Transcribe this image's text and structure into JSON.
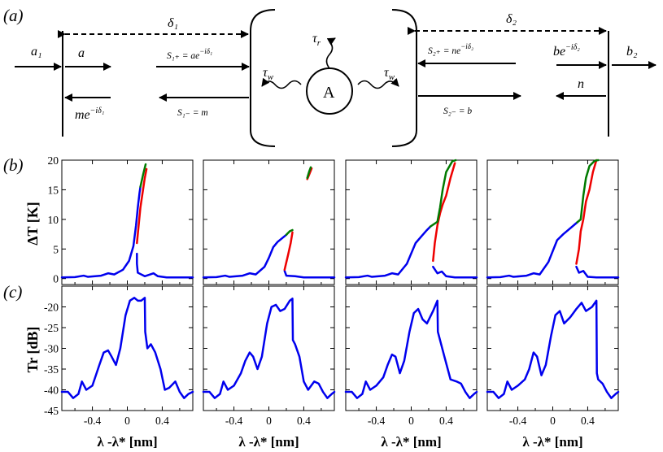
{
  "schematic": {
    "panel_label": "(a)",
    "delta1": "δ₁",
    "delta2": "δ₂",
    "a1": "a₁",
    "a": "a",
    "me": "me",
    "me_exp": "−iδ₁",
    "S1p": "S₁₊ = ae",
    "S1p_exp": "−iδ₁",
    "S1m": "S₁₋ = m",
    "tau_r": "τ",
    "tau_r_sub": "r",
    "tau_w": "τ",
    "tau_w_sub": "w",
    "resonator": "A",
    "S2p": "S₂₊ = ne",
    "S2p_exp": "−iδ₂",
    "S2m": "S₂₋ = b",
    "be": "be",
    "be_exp": "−iδ₂",
    "n": "n",
    "b2": "b₂"
  },
  "labels": {
    "panel_b": "(b)",
    "panel_c": "(c)",
    "ylabel_b": "ΔT [K]",
    "ylabel_c": "Tr [dB]",
    "xlabel": "λ -λ* [nm]"
  },
  "colors": {
    "blue": "#0000ee",
    "red": "#ee0000",
    "green": "#007a00"
  },
  "chart_data": [
    {
      "type": "line",
      "panel": "b",
      "ylabel": "ΔT [K]",
      "xlabel": "λ -λ* [nm]",
      "xlim": [
        -0.75,
        0.75
      ],
      "ylim": [
        -1,
        20
      ],
      "yticks": [
        0,
        5,
        10,
        15,
        20
      ],
      "xticks": [
        -0.4,
        0,
        0.4
      ],
      "subplots": [
        {
          "blue": [
            [
              -0.75,
              0.2
            ],
            [
              -0.6,
              0.25
            ],
            [
              -0.5,
              0.5
            ],
            [
              -0.45,
              0.3
            ],
            [
              -0.3,
              0.5
            ],
            [
              -0.22,
              0.9
            ],
            [
              -0.15,
              0.7
            ],
            [
              -0.05,
              1.5
            ],
            [
              0.02,
              3
            ],
            [
              0.07,
              5.5
            ],
            [
              0.1,
              9
            ],
            [
              0.12,
              12
            ],
            [
              0.14,
              14.5
            ],
            [
              0.15,
              15.5
            ]
          ],
          "blue_lower": [
            [
              0.11,
              4.2
            ],
            [
              0.11,
              2.5
            ],
            [
              0.12,
              1.0
            ],
            [
              0.2,
              0.4
            ],
            [
              0.3,
              0.9
            ],
            [
              0.35,
              0.4
            ],
            [
              0.45,
              0.2
            ],
            [
              0.75,
              0.2
            ]
          ],
          "red": [
            [
              0.11,
              6
            ],
            [
              0.13,
              9
            ],
            [
              0.15,
              12
            ],
            [
              0.18,
              15
            ],
            [
              0.2,
              17
            ],
            [
              0.22,
              18.5
            ]
          ],
          "green": [
            [
              0.15,
              15.5
            ],
            [
              0.18,
              17.5
            ],
            [
              0.21,
              19.3
            ]
          ]
        },
        {
          "blue": [
            [
              -0.75,
              0.2
            ],
            [
              -0.6,
              0.25
            ],
            [
              -0.5,
              0.5
            ],
            [
              -0.45,
              0.3
            ],
            [
              -0.3,
              0.5
            ],
            [
              -0.22,
              0.9
            ],
            [
              -0.15,
              0.7
            ],
            [
              -0.05,
              2
            ],
            [
              0,
              3.5
            ],
            [
              0.05,
              5.3
            ],
            [
              0.1,
              6.2
            ],
            [
              0.15,
              6.8
            ],
            [
              0.2,
              7.4
            ]
          ],
          "blue_lower": [
            [
              0.18,
              1.3
            ],
            [
              0.2,
              0.5
            ],
            [
              0.3,
              0.4
            ],
            [
              0.4,
              0.2
            ],
            [
              0.5,
              0.2
            ],
            [
              0.75,
              0.2
            ]
          ],
          "red": [
            [
              0.18,
              1.5
            ],
            [
              0.22,
              4
            ],
            [
              0.25,
              6
            ],
            [
              0.27,
              7.8
            ],
            [
              0.44,
              16.8
            ],
            [
              0.46,
              17.5
            ],
            [
              0.49,
              18.6
            ]
          ],
          "green": [
            [
              0.2,
              7.4
            ],
            [
              0.24,
              8
            ],
            [
              0.27,
              8.2
            ],
            [
              0.44,
              17
            ],
            [
              0.46,
              18
            ],
            [
              0.48,
              18.8
            ]
          ]
        },
        {
          "blue": [
            [
              -0.75,
              0.2
            ],
            [
              -0.6,
              0.25
            ],
            [
              -0.5,
              0.5
            ],
            [
              -0.45,
              0.3
            ],
            [
              -0.3,
              0.5
            ],
            [
              -0.22,
              0.9
            ],
            [
              -0.15,
              0.7
            ],
            [
              -0.05,
              2.5
            ],
            [
              0.05,
              6
            ],
            [
              0.12,
              7.2
            ],
            [
              0.18,
              8.2
            ],
            [
              0.22,
              8.8
            ]
          ],
          "blue_lower": [
            [
              0.25,
              2
            ],
            [
              0.3,
              0.9
            ],
            [
              0.35,
              1.2
            ],
            [
              0.4,
              0.4
            ],
            [
              0.5,
              0.2
            ],
            [
              0.75,
              0.2
            ]
          ],
          "red": [
            [
              0.25,
              3
            ],
            [
              0.27,
              6
            ],
            [
              0.3,
              9
            ],
            [
              0.33,
              11
            ],
            [
              0.36,
              12.5
            ],
            [
              0.4,
              14
            ],
            [
              0.45,
              17
            ],
            [
              0.5,
              19.5
            ]
          ],
          "green": [
            [
              0.22,
              8.8
            ],
            [
              0.28,
              9.4
            ],
            [
              0.3,
              9.6
            ],
            [
              0.33,
              12
            ],
            [
              0.36,
              15
            ],
            [
              0.4,
              18
            ],
            [
              0.47,
              19.8
            ],
            [
              0.51,
              20
            ]
          ]
        },
        {
          "blue": [
            [
              -0.75,
              0.2
            ],
            [
              -0.6,
              0.25
            ],
            [
              -0.5,
              0.5
            ],
            [
              -0.45,
              0.3
            ],
            [
              -0.3,
              0.5
            ],
            [
              -0.22,
              0.9
            ],
            [
              -0.15,
              0.7
            ],
            [
              -0.05,
              2.8
            ],
            [
              0.05,
              6.5
            ],
            [
              0.12,
              7.5
            ],
            [
              0.2,
              8.5
            ],
            [
              0.28,
              9.5
            ]
          ],
          "blue_lower": [
            [
              0.27,
              2
            ],
            [
              0.3,
              1.0
            ],
            [
              0.35,
              1.3
            ],
            [
              0.4,
              0.3
            ],
            [
              0.5,
              0.2
            ],
            [
              0.75,
              0.2
            ]
          ],
          "red": [
            [
              0.27,
              2.5
            ],
            [
              0.3,
              5
            ],
            [
              0.32,
              8
            ],
            [
              0.35,
              10
            ],
            [
              0.38,
              13
            ],
            [
              0.42,
              15
            ],
            [
              0.46,
              18
            ],
            [
              0.5,
              20
            ]
          ],
          "green": [
            [
              0.28,
              9.5
            ],
            [
              0.32,
              10
            ],
            [
              0.35,
              14
            ],
            [
              0.38,
              17
            ],
            [
              0.42,
              19
            ],
            [
              0.48,
              19.9
            ],
            [
              0.52,
              20
            ]
          ]
        }
      ]
    },
    {
      "type": "line",
      "panel": "c",
      "ylabel": "Tr [dB]",
      "xlabel": "λ -λ* [nm]",
      "xlim": [
        -0.75,
        0.75
      ],
      "ylim": [
        -45,
        -15
      ],
      "yticks": [
        -45,
        -40,
        -35,
        -30,
        -25,
        -20
      ],
      "xticks": [
        -0.4,
        0,
        0.4
      ],
      "subplots": [
        {
          "series": [
            [
              -0.75,
              -40.5
            ],
            [
              -0.68,
              -40.5
            ],
            [
              -0.62,
              -42
            ],
            [
              -0.56,
              -41
            ],
            [
              -0.52,
              -38
            ],
            [
              -0.47,
              -40
            ],
            [
              -0.4,
              -39
            ],
            [
              -0.32,
              -34
            ],
            [
              -0.27,
              -31
            ],
            [
              -0.22,
              -30.5
            ],
            [
              -0.18,
              -32
            ],
            [
              -0.13,
              -34
            ],
            [
              -0.08,
              -30
            ],
            [
              -0.02,
              -22
            ],
            [
              0.03,
              -18.5
            ],
            [
              0.08,
              -17.8
            ],
            [
              0.12,
              -18.5
            ],
            [
              0.16,
              -18.5
            ],
            [
              0.2,
              -17.8
            ],
            [
              0.205,
              -26
            ],
            [
              0.23,
              -30
            ],
            [
              0.27,
              -29
            ],
            [
              0.32,
              -31
            ],
            [
              0.38,
              -35
            ],
            [
              0.43,
              -40
            ],
            [
              0.48,
              -39.5
            ],
            [
              0.55,
              -38
            ],
            [
              0.6,
              -40.5
            ],
            [
              0.65,
              -42
            ],
            [
              0.7,
              -41
            ],
            [
              0.75,
              -40.5
            ]
          ]
        },
        {
          "series": [
            [
              -0.75,
              -40.5
            ],
            [
              -0.68,
              -40.5
            ],
            [
              -0.62,
              -42
            ],
            [
              -0.56,
              -41
            ],
            [
              -0.52,
              -38
            ],
            [
              -0.47,
              -40
            ],
            [
              -0.4,
              -39
            ],
            [
              -0.32,
              -36
            ],
            [
              -0.27,
              -33
            ],
            [
              -0.22,
              -31
            ],
            [
              -0.18,
              -32
            ],
            [
              -0.13,
              -35
            ],
            [
              -0.08,
              -32
            ],
            [
              -0.02,
              -24
            ],
            [
              0.03,
              -20
            ],
            [
              0.08,
              -19.5
            ],
            [
              0.13,
              -21
            ],
            [
              0.18,
              -20.5
            ],
            [
              0.24,
              -18.5
            ],
            [
              0.27,
              -18
            ],
            [
              0.275,
              -28
            ],
            [
              0.3,
              -29
            ],
            [
              0.35,
              -32
            ],
            [
              0.4,
              -38
            ],
            [
              0.45,
              -40
            ],
            [
              0.52,
              -38
            ],
            [
              0.57,
              -38.5
            ],
            [
              0.62,
              -40.5
            ],
            [
              0.67,
              -42
            ],
            [
              0.72,
              -41
            ],
            [
              0.75,
              -40.5
            ]
          ]
        },
        {
          "series": [
            [
              -0.75,
              -40.5
            ],
            [
              -0.68,
              -40.5
            ],
            [
              -0.62,
              -42
            ],
            [
              -0.56,
              -41
            ],
            [
              -0.52,
              -38
            ],
            [
              -0.47,
              -40
            ],
            [
              -0.4,
              -39
            ],
            [
              -0.32,
              -37
            ],
            [
              -0.27,
              -34
            ],
            [
              -0.22,
              -31.5
            ],
            [
              -0.18,
              -32
            ],
            [
              -0.13,
              -36
            ],
            [
              -0.08,
              -33
            ],
            [
              -0.02,
              -26
            ],
            [
              0.03,
              -21.5
            ],
            [
              0.08,
              -20.5
            ],
            [
              0.13,
              -23
            ],
            [
              0.18,
              -24
            ],
            [
              0.25,
              -21
            ],
            [
              0.3,
              -18.5
            ],
            [
              0.305,
              -26
            ],
            [
              0.33,
              -28
            ],
            [
              0.38,
              -32
            ],
            [
              0.45,
              -37.5
            ],
            [
              0.52,
              -38
            ],
            [
              0.57,
              -38.5
            ],
            [
              0.62,
              -40.5
            ],
            [
              0.67,
              -42
            ],
            [
              0.72,
              -41
            ],
            [
              0.75,
              -40.5
            ]
          ]
        },
        {
          "series": [
            [
              -0.75,
              -40.5
            ],
            [
              -0.68,
              -40.5
            ],
            [
              -0.62,
              -42
            ],
            [
              -0.56,
              -41
            ],
            [
              -0.52,
              -38
            ],
            [
              -0.47,
              -40
            ],
            [
              -0.4,
              -39
            ],
            [
              -0.32,
              -37.5
            ],
            [
              -0.27,
              -35
            ],
            [
              -0.22,
              -31
            ],
            [
              -0.18,
              -32
            ],
            [
              -0.13,
              -36.5
            ],
            [
              -0.08,
              -34
            ],
            [
              -0.02,
              -27
            ],
            [
              0.03,
              -22
            ],
            [
              0.08,
              -21
            ],
            [
              0.13,
              -24
            ],
            [
              0.2,
              -22.5
            ],
            [
              0.27,
              -20.5
            ],
            [
              0.33,
              -19
            ],
            [
              0.38,
              -21
            ],
            [
              0.45,
              -20
            ],
            [
              0.5,
              -18.5
            ],
            [
              0.505,
              -36
            ],
            [
              0.52,
              -37.5
            ],
            [
              0.57,
              -38.5
            ],
            [
              0.62,
              -40.5
            ],
            [
              0.67,
              -42
            ],
            [
              0.72,
              -41
            ],
            [
              0.75,
              -40.5
            ]
          ]
        }
      ]
    }
  ]
}
